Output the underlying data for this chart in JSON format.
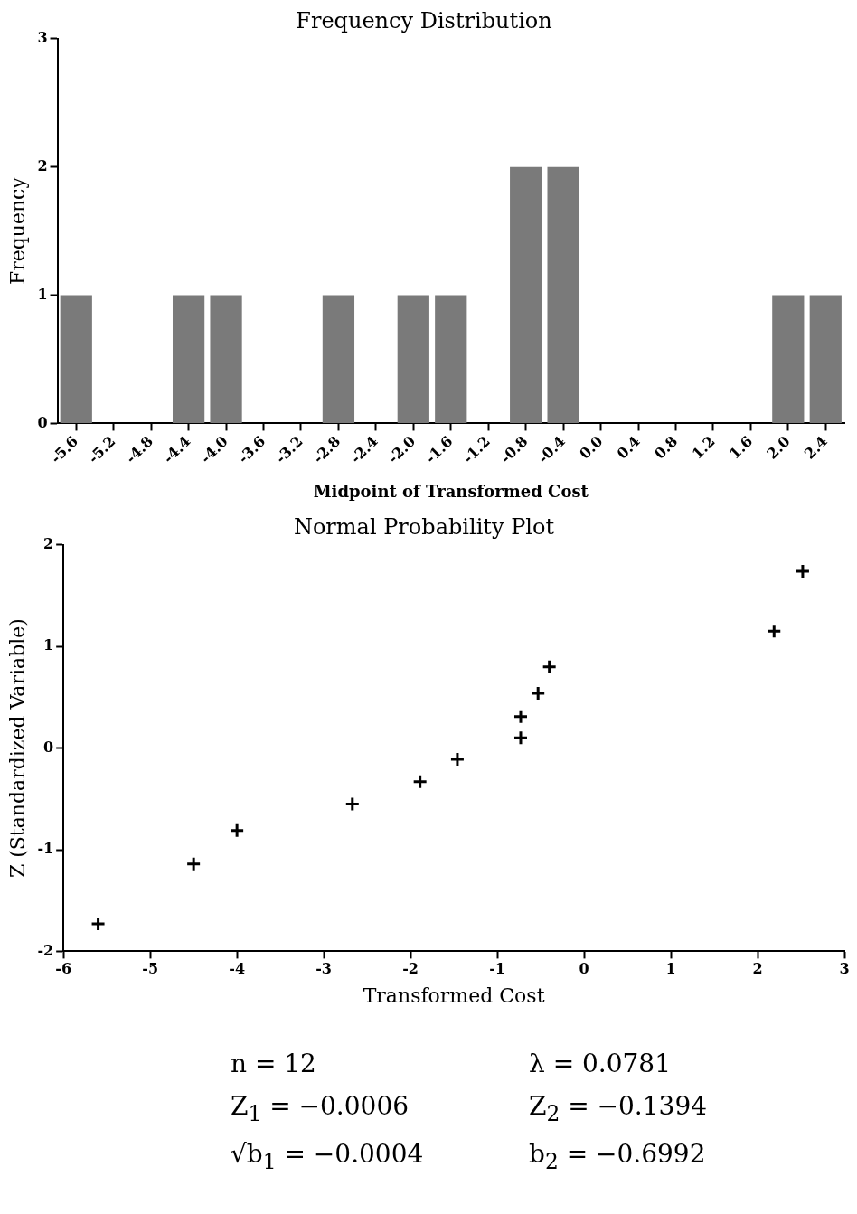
{
  "chart_data": [
    {
      "type": "bar",
      "title": "Frequency Distribution",
      "xlabel": "Midpoint of Transformed Cost",
      "ylabel": "Frequency",
      "categories": [
        "-5.6",
        "-5.2",
        "-4.8",
        "-4.4",
        "-4.0",
        "-3.6",
        "-3.2",
        "-2.8",
        "-2.4",
        "-2.0",
        "-1.6",
        "-1.2",
        "-0.8",
        "-0.4",
        "0.0",
        "0.4",
        "0.8",
        "1.2",
        "1.6",
        "2.0",
        "2.4"
      ],
      "values": [
        1,
        0,
        0,
        1,
        1,
        0,
        0,
        1,
        0,
        1,
        1,
        0,
        2,
        2,
        0,
        0,
        0,
        0,
        0,
        1,
        1
      ],
      "color": "#7a7a7a",
      "ylim": [
        0,
        3
      ],
      "yticks": [
        0,
        1,
        2,
        3
      ],
      "grid": false,
      "legend": false
    },
    {
      "type": "scatter",
      "title": "Normal Probability Plot",
      "xlabel": "Transformed Cost",
      "ylabel": "Z (Standardized Variable)",
      "x": [
        -5.6,
        -4.5,
        -4.0,
        -2.67,
        -1.89,
        -1.46,
        -0.73,
        -0.73,
        -0.53,
        -0.4,
        2.19,
        2.52
      ],
      "values": [
        -1.73,
        -1.14,
        -0.81,
        -0.55,
        -0.33,
        -0.11,
        0.1,
        0.31,
        0.54,
        0.8,
        1.15,
        1.74
      ],
      "color": "#000000",
      "marker": "cross",
      "xlim": [
        -6,
        3
      ],
      "xticks": [
        -6,
        -5,
        -4,
        -3,
        -2,
        -1,
        0,
        1,
        2,
        3
      ],
      "ylim": [
        -2,
        2
      ],
      "yticks": [
        -2,
        -1,
        0,
        1,
        2
      ],
      "grid": false,
      "legend": false,
      "annotations": [
        "n = 12",
        "λ =  0.0781",
        "Z$_{1}$ = −0.0006",
        "Z$_{2}$ = −0.1394",
        "√b$_{1}$ = −0.0004",
        "b$_{2}$ = −0.6992"
      ]
    }
  ]
}
